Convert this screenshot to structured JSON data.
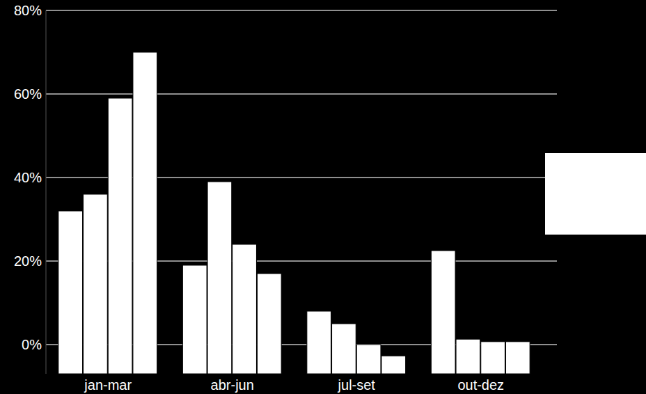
{
  "chart_data": {
    "type": "bar",
    "categories": [
      "jan-mar",
      "abr-jun",
      "jul-set",
      "out-dez"
    ],
    "series": [
      {
        "color": "#ffffff",
        "values": [
          32,
          19,
          8,
          22.5
        ]
      },
      {
        "color": "#ffffff",
        "values": [
          36,
          39,
          5,
          1.3
        ]
      },
      {
        "color": "#ffffff",
        "values": [
          59,
          24,
          0,
          0.7
        ]
      },
      {
        "color": "#ffffff",
        "values": [
          70,
          17,
          -2.7,
          0.7
        ]
      }
    ],
    "ylim": [
      -7,
      80
    ],
    "yticks": [
      {
        "value": 0,
        "label": "0%"
      },
      {
        "value": 20,
        "label": "20%"
      },
      {
        "value": 40,
        "label": "40%"
      },
      {
        "value": 60,
        "label": "60%"
      },
      {
        "value": 80,
        "label": "80%"
      }
    ],
    "grid": true
  }
}
